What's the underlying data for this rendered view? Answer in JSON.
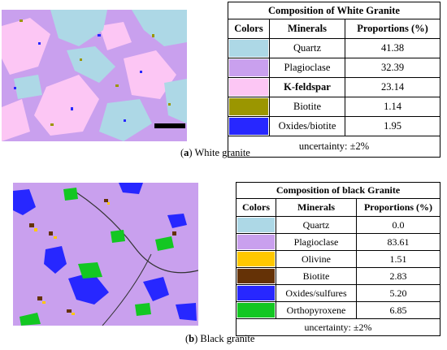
{
  "panel_a": {
    "table_title": "Composition of White Granite",
    "headers": [
      "Colors",
      "Minerals",
      "Proportions (%)"
    ],
    "rows": [
      {
        "color": "#add8e6",
        "mineral": "Quartz",
        "proportion": "41.38"
      },
      {
        "color": "#c9a0ee",
        "mineral": "Plagioclase",
        "proportion": "32.39"
      },
      {
        "color": "#fcc6f4",
        "mineral": "K-feldspar",
        "proportion": "23.14"
      },
      {
        "color": "#9b9600",
        "mineral": "Biotite",
        "proportion": "1.14"
      },
      {
        "color": "#2727ff",
        "mineral": "Oxides/biotite",
        "proportion": "1.95"
      }
    ],
    "uncertainty": "uncertainty: ±2%",
    "caption_label": "a",
    "caption_text": "White granite"
  },
  "panel_b": {
    "table_title": "Composition of black Granite",
    "headers": [
      "Colors",
      "Minerals",
      "Proportions (%)"
    ],
    "rows": [
      {
        "color": "#add8e6",
        "mineral": "Quartz",
        "proportion": "0.0"
      },
      {
        "color": "#c9a0ee",
        "mineral": "Plagioclase",
        "proportion": "83.61"
      },
      {
        "color": "#ffc800",
        "mineral": "Olivine",
        "proportion": "1.51"
      },
      {
        "color": "#653206",
        "mineral": "Biotite",
        "proportion": "2.83"
      },
      {
        "color": "#2727ff",
        "mineral": "Oxides/sulfures",
        "proportion": "5.20"
      },
      {
        "color": "#13c722",
        "mineral": "Orthopyroxene",
        "proportion": "6.85"
      }
    ],
    "uncertainty": "uncertainty: ±2%",
    "caption_label": "b",
    "caption_text": "Black granite"
  }
}
